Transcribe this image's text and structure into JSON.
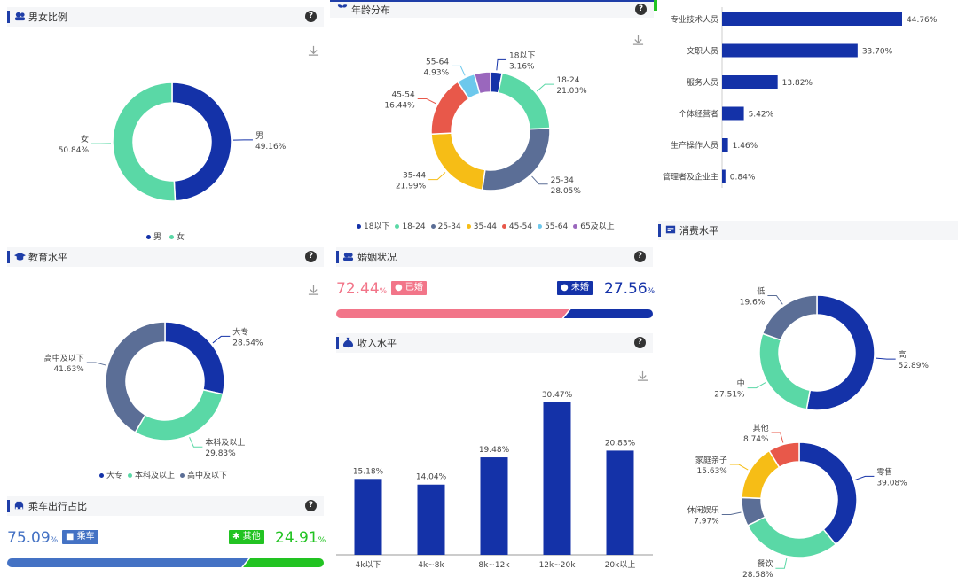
{
  "colors": {
    "navy": "#1432a8",
    "green": "#5ad8a6",
    "slate": "#5b6e96",
    "yellow": "#f6bd16",
    "red": "#e8584a",
    "sky": "#6dc8ec",
    "purple": "#9a67bd",
    "pink": "#f27589",
    "bus_blue": "#4472c4",
    "walk_green": "#22c322"
  },
  "icons": {
    "gender": "people-icon",
    "age": "sprout-icon",
    "education": "graduation-cap-icon",
    "travel": "car-icon",
    "marriage": "people-icon",
    "income": "money-bag-icon",
    "consumption": "card-icon",
    "help": "question-icon",
    "download": "download-icon"
  },
  "gender": {
    "title": "男女比例",
    "chart_data": {
      "type": "pie",
      "donut": true,
      "slices": [
        {
          "label": "男",
          "value": 49.16,
          "pct": "49.16%"
        },
        {
          "label": "女",
          "value": 50.84,
          "pct": "50.84%"
        }
      ],
      "legend": [
        "男",
        "女"
      ],
      "legend_position": "bottom"
    }
  },
  "age": {
    "title": "年龄分布",
    "chart_data": {
      "type": "pie",
      "donut": true,
      "slices": [
        {
          "label": "18以下",
          "value": 3.16,
          "pct": "3.16%"
        },
        {
          "label": "18-24",
          "value": 21.03,
          "pct": "21.03%"
        },
        {
          "label": "25-34",
          "value": 28.05,
          "pct": "28.05%"
        },
        {
          "label": "35-44",
          "value": 21.99,
          "pct": "21.99%"
        },
        {
          "label": "45-54",
          "value": 16.44,
          "pct": "16.44%"
        },
        {
          "label": "55-64",
          "value": 4.93,
          "pct": "4.93%"
        },
        {
          "label": "65及以上",
          "value": 4.4,
          "pct": ""
        }
      ],
      "legend": [
        "18以下",
        "18-24",
        "25-34",
        "35-44",
        "45-54",
        "55-64",
        "65及以上"
      ],
      "legend_position": "bottom"
    }
  },
  "occupation": {
    "chart_data": {
      "type": "bar",
      "orientation": "horizontal",
      "categories": [
        "专业技术人员",
        "文职人员",
        "服务人员",
        "个体经营者",
        "生产操作人员",
        "管理者及企业主"
      ],
      "values": [
        44.76,
        33.7,
        13.82,
        5.42,
        1.46,
        0.84
      ],
      "value_labels": [
        "44.76%",
        "33.70%",
        "13.82%",
        "5.42%",
        "1.46%",
        "0.84%"
      ]
    }
  },
  "education": {
    "title": "教育水平",
    "chart_data": {
      "type": "pie",
      "donut": true,
      "slices": [
        {
          "label": "大专",
          "value": 28.54,
          "pct": "28.54%"
        },
        {
          "label": "本科及以上",
          "value": 29.83,
          "pct": "29.83%"
        },
        {
          "label": "高中及以下",
          "value": 41.63,
          "pct": "41.63%"
        }
      ],
      "legend": [
        "大专",
        "本科及以上",
        "高中及以下"
      ],
      "legend_position": "bottom"
    }
  },
  "travel": {
    "title": "乘车出行占比",
    "left_value": "75.09",
    "left_label": "乘车",
    "right_label": "其他",
    "right_value": "24.91",
    "pct_sign": "%",
    "share": 0.7509
  },
  "marriage": {
    "title": "婚姻状况",
    "left_value": "72.44",
    "left_label": "已婚",
    "right_label": "未婚",
    "right_value": "27.56",
    "pct_sign": "%",
    "share": 0.7244
  },
  "income": {
    "title": "收入水平",
    "chart_data": {
      "type": "bar",
      "categories": [
        "4k以下",
        "4k~8k",
        "8k~12k",
        "12k~20k",
        "20k以上"
      ],
      "values": [
        15.18,
        14.04,
        19.48,
        30.47,
        20.83
      ],
      "value_labels": [
        "15.18%",
        "14.04%",
        "19.48%",
        "30.47%",
        "20.83%"
      ]
    }
  },
  "consumption": {
    "title": "消费水平",
    "chart_data": [
      {
        "type": "pie",
        "donut": true,
        "slices": [
          {
            "label": "高",
            "value": 52.89,
            "pct": "52.89%"
          },
          {
            "label": "中",
            "value": 27.51,
            "pct": "27.51%"
          },
          {
            "label": "低",
            "value": 19.6,
            "pct": "19.6%"
          }
        ]
      },
      {
        "type": "pie",
        "donut": true,
        "slices": [
          {
            "label": "零售",
            "value": 39.08,
            "pct": "39.08%"
          },
          {
            "label": "餐饮",
            "value": 28.58,
            "pct": "28.58%"
          },
          {
            "label": "休闲娱乐",
            "value": 7.97,
            "pct": "7.97%"
          },
          {
            "label": "家庭亲子",
            "value": 15.63,
            "pct": "15.63%"
          },
          {
            "label": "其他",
            "value": 8.74,
            "pct": "8.74%"
          }
        ]
      }
    ]
  }
}
